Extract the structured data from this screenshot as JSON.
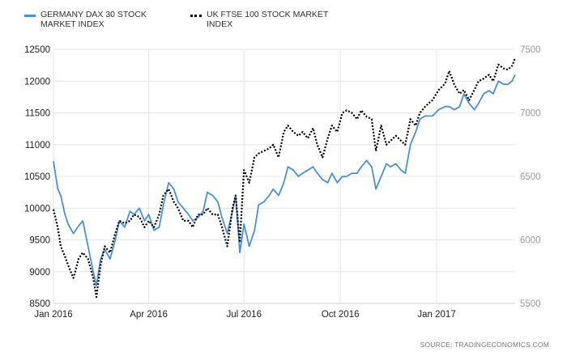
{
  "chart_data": {
    "type": "line",
    "legend_position": "top-left",
    "grid": true,
    "x_labels": [
      "Jan 2016",
      "Apr 2016",
      "Jul 2016",
      "Oct 2016",
      "Jan 2017"
    ],
    "x_range": [
      "2016-01-01",
      "2017-03-17"
    ],
    "left_axis": {
      "ticks": [
        8500,
        9000,
        9500,
        10000,
        10500,
        11000,
        11500,
        12000,
        12500
      ],
      "ylim": [
        8500,
        12500
      ]
    },
    "right_axis": {
      "ticks": [
        5500,
        6000,
        6500,
        7000,
        7500
      ],
      "ylim": [
        5500,
        7500
      ]
    },
    "series": [
      {
        "name": "GERMANY DAX 30 STOCK MARKET INDEX",
        "axis": "left",
        "color": "#4a90d9",
        "style": "solid",
        "points": [
          [
            "2016-01-01",
            10740
          ],
          [
            "2016-01-05",
            10310
          ],
          [
            "2016-01-08",
            10200
          ],
          [
            "2016-01-12",
            9900
          ],
          [
            "2016-01-15",
            9750
          ],
          [
            "2016-01-20",
            9600
          ],
          [
            "2016-01-25",
            9720
          ],
          [
            "2016-01-29",
            9800
          ],
          [
            "2016-02-03",
            9400
          ],
          [
            "2016-02-08",
            9000
          ],
          [
            "2016-02-11",
            8780
          ],
          [
            "2016-02-15",
            9200
          ],
          [
            "2016-02-19",
            9350
          ],
          [
            "2016-02-24",
            9200
          ],
          [
            "2016-02-29",
            9500
          ],
          [
            "2016-03-04",
            9800
          ],
          [
            "2016-03-09",
            9700
          ],
          [
            "2016-03-14",
            9950
          ],
          [
            "2016-03-18",
            9900
          ],
          [
            "2016-03-23",
            10000
          ],
          [
            "2016-03-28",
            9800
          ],
          [
            "2016-04-01",
            9900
          ],
          [
            "2016-04-06",
            9650
          ],
          [
            "2016-04-11",
            9700
          ],
          [
            "2016-04-15",
            10050
          ],
          [
            "2016-04-20",
            10400
          ],
          [
            "2016-04-25",
            10300
          ],
          [
            "2016-04-29",
            10100
          ],
          [
            "2016-05-04",
            10000
          ],
          [
            "2016-05-09",
            9900
          ],
          [
            "2016-05-13",
            9800
          ],
          [
            "2016-05-18",
            9850
          ],
          [
            "2016-05-23",
            9950
          ],
          [
            "2016-05-27",
            10250
          ],
          [
            "2016-06-01",
            10200
          ],
          [
            "2016-06-06",
            10100
          ],
          [
            "2016-06-10",
            9850
          ],
          [
            "2016-06-15",
            9600
          ],
          [
            "2016-06-20",
            9950
          ],
          [
            "2016-06-23",
            10200
          ],
          [
            "2016-06-27",
            9300
          ],
          [
            "2016-07-01",
            9750
          ],
          [
            "2016-07-06",
            9400
          ],
          [
            "2016-07-11",
            9650
          ],
          [
            "2016-07-15",
            10050
          ],
          [
            "2016-07-20",
            10100
          ],
          [
            "2016-07-25",
            10200
          ],
          [
            "2016-07-29",
            10300
          ],
          [
            "2016-08-03",
            10200
          ],
          [
            "2016-08-08",
            10400
          ],
          [
            "2016-08-12",
            10650
          ],
          [
            "2016-08-17",
            10600
          ],
          [
            "2016-08-22",
            10500
          ],
          [
            "2016-08-26",
            10550
          ],
          [
            "2016-08-31",
            10600
          ],
          [
            "2016-09-05",
            10650
          ],
          [
            "2016-09-09",
            10550
          ],
          [
            "2016-09-14",
            10450
          ],
          [
            "2016-09-19",
            10400
          ],
          [
            "2016-09-23",
            10550
          ],
          [
            "2016-09-28",
            10400
          ],
          [
            "2016-10-03",
            10500
          ],
          [
            "2016-10-07",
            10500
          ],
          [
            "2016-10-12",
            10550
          ],
          [
            "2016-10-17",
            10550
          ],
          [
            "2016-10-21",
            10650
          ],
          [
            "2016-10-26",
            10750
          ],
          [
            "2016-10-31",
            10650
          ],
          [
            "2016-11-04",
            10300
          ],
          [
            "2016-11-09",
            10500
          ],
          [
            "2016-11-14",
            10700
          ],
          [
            "2016-11-18",
            10650
          ],
          [
            "2016-11-23",
            10700
          ],
          [
            "2016-11-28",
            10600
          ],
          [
            "2016-12-02",
            10550
          ],
          [
            "2016-12-07",
            11000
          ],
          [
            "2016-12-12",
            11200
          ],
          [
            "2016-12-16",
            11400
          ],
          [
            "2016-12-21",
            11450
          ],
          [
            "2016-12-28",
            11450
          ],
          [
            "2017-01-03",
            11550
          ],
          [
            "2017-01-09",
            11600
          ],
          [
            "2017-01-13",
            11600
          ],
          [
            "2017-01-18",
            11550
          ],
          [
            "2017-01-23",
            11600
          ],
          [
            "2017-01-27",
            11800
          ],
          [
            "2017-02-01",
            11650
          ],
          [
            "2017-02-06",
            11550
          ],
          [
            "2017-02-10",
            11650
          ],
          [
            "2017-02-15",
            11800
          ],
          [
            "2017-02-20",
            11850
          ],
          [
            "2017-02-24",
            11800
          ],
          [
            "2017-03-01",
            12000
          ],
          [
            "2017-03-06",
            11950
          ],
          [
            "2017-03-10",
            11950
          ],
          [
            "2017-03-14",
            12000
          ],
          [
            "2017-03-17",
            12100
          ]
        ]
      },
      {
        "name": "UK FTSE 100 STOCK MARKET INDEX",
        "axis": "right",
        "color": "#000000",
        "style": "dotted",
        "points": [
          [
            "2016-01-01",
            6240
          ],
          [
            "2016-01-05",
            6100
          ],
          [
            "2016-01-08",
            5950
          ],
          [
            "2016-01-12",
            5870
          ],
          [
            "2016-01-15",
            5800
          ],
          [
            "2016-01-20",
            5700
          ],
          [
            "2016-01-25",
            5850
          ],
          [
            "2016-01-29",
            5900
          ],
          [
            "2016-02-03",
            5850
          ],
          [
            "2016-02-08",
            5700
          ],
          [
            "2016-02-11",
            5550
          ],
          [
            "2016-02-15",
            5800
          ],
          [
            "2016-02-19",
            5950
          ],
          [
            "2016-02-24",
            5900
          ],
          [
            "2016-02-29",
            6050
          ],
          [
            "2016-03-04",
            6150
          ],
          [
            "2016-03-09",
            6130
          ],
          [
            "2016-03-14",
            6150
          ],
          [
            "2016-03-18",
            6200
          ],
          [
            "2016-03-23",
            6180
          ],
          [
            "2016-03-28",
            6100
          ],
          [
            "2016-04-01",
            6150
          ],
          [
            "2016-04-06",
            6100
          ],
          [
            "2016-04-11",
            6200
          ],
          [
            "2016-04-15",
            6350
          ],
          [
            "2016-04-20",
            6400
          ],
          [
            "2016-04-25",
            6300
          ],
          [
            "2016-04-29",
            6250
          ],
          [
            "2016-05-04",
            6150
          ],
          [
            "2016-05-09",
            6150
          ],
          [
            "2016-05-13",
            6100
          ],
          [
            "2016-05-18",
            6200
          ],
          [
            "2016-05-23",
            6200
          ],
          [
            "2016-05-27",
            6250
          ],
          [
            "2016-06-01",
            6200
          ],
          [
            "2016-06-06",
            6200
          ],
          [
            "2016-06-10",
            6100
          ],
          [
            "2016-06-15",
            5950
          ],
          [
            "2016-06-20",
            6250
          ],
          [
            "2016-06-23",
            6350
          ],
          [
            "2016-06-27",
            5980
          ],
          [
            "2016-07-01",
            6550
          ],
          [
            "2016-07-06",
            6450
          ],
          [
            "2016-07-11",
            6650
          ],
          [
            "2016-07-15",
            6680
          ],
          [
            "2016-07-20",
            6700
          ],
          [
            "2016-07-25",
            6720
          ],
          [
            "2016-07-29",
            6750
          ],
          [
            "2016-08-03",
            6650
          ],
          [
            "2016-08-08",
            6850
          ],
          [
            "2016-08-12",
            6900
          ],
          [
            "2016-08-17",
            6850
          ],
          [
            "2016-08-22",
            6820
          ],
          [
            "2016-08-26",
            6850
          ],
          [
            "2016-08-31",
            6800
          ],
          [
            "2016-09-05",
            6880
          ],
          [
            "2016-09-09",
            6750
          ],
          [
            "2016-09-14",
            6650
          ],
          [
            "2016-09-19",
            6800
          ],
          [
            "2016-09-23",
            6900
          ],
          [
            "2016-09-28",
            6850
          ],
          [
            "2016-10-03",
            7000
          ],
          [
            "2016-10-07",
            7020
          ],
          [
            "2016-10-12",
            7000
          ],
          [
            "2016-10-17",
            6950
          ],
          [
            "2016-10-21",
            7020
          ],
          [
            "2016-10-26",
            6970
          ],
          [
            "2016-10-31",
            6950
          ],
          [
            "2016-11-04",
            6700
          ],
          [
            "2016-11-09",
            6900
          ],
          [
            "2016-11-14",
            6750
          ],
          [
            "2016-11-18",
            6780
          ],
          [
            "2016-11-23",
            6820
          ],
          [
            "2016-11-28",
            6780
          ],
          [
            "2016-12-02",
            6750
          ],
          [
            "2016-12-07",
            6950
          ],
          [
            "2016-12-12",
            6900
          ],
          [
            "2016-12-16",
            7000
          ],
          [
            "2016-12-21",
            7050
          ],
          [
            "2016-12-28",
            7100
          ],
          [
            "2017-01-03",
            7180
          ],
          [
            "2017-01-09",
            7230
          ],
          [
            "2017-01-13",
            7330
          ],
          [
            "2017-01-18",
            7220
          ],
          [
            "2017-01-23",
            7150
          ],
          [
            "2017-01-27",
            7180
          ],
          [
            "2017-02-01",
            7100
          ],
          [
            "2017-02-06",
            7180
          ],
          [
            "2017-02-10",
            7250
          ],
          [
            "2017-02-15",
            7270
          ],
          [
            "2017-02-20",
            7300
          ],
          [
            "2017-02-24",
            7250
          ],
          [
            "2017-03-01",
            7380
          ],
          [
            "2017-03-06",
            7350
          ],
          [
            "2017-03-10",
            7340
          ],
          [
            "2017-03-14",
            7370
          ],
          [
            "2017-03-17",
            7430
          ]
        ]
      }
    ],
    "source": "SOURCE: TRADINGECONOMICS.COM"
  },
  "legend": {
    "series_1": "GERMANY DAX 30 STOCK MARKET INDEX",
    "series_2": "UK FTSE 100 STOCK MARKET INDEX"
  },
  "footer": {
    "source": "SOURCE: TRADINGECONOMICS.COM"
  }
}
